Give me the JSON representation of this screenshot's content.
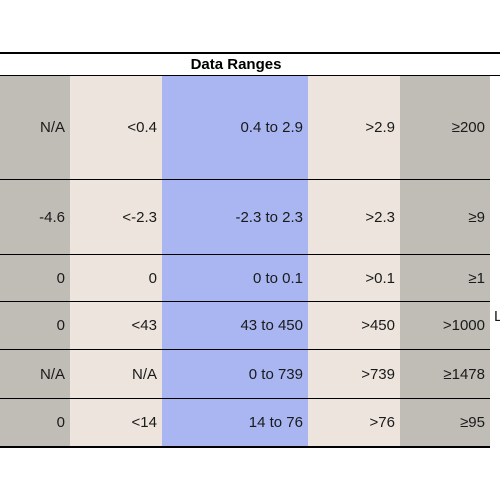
{
  "title": "Data Ranges",
  "rows": [
    {
      "c0": "N/A",
      "c1": "<0.4",
      "c2": "0.4 to 2.9",
      "c3": ">2.9",
      "c4": "≥200"
    },
    {
      "c0": "-4.6",
      "c1": "<-2.3",
      "c2": "-2.3 to 2.3",
      "c3": ">2.3",
      "c4": "≥9"
    },
    {
      "c0": "0",
      "c1": "0",
      "c2": "0 to 0.1",
      "c3": ">0.1",
      "c4": "≥1"
    },
    {
      "c0": "0",
      "c1": "<43",
      "c2": "43 to 450",
      "c3": ">450",
      "c4": ">1000",
      "side": "L"
    },
    {
      "c0": "N/A",
      "c1": "N/A",
      "c2": "0 to 739",
      "c3": ">739",
      "c4": "≥1478"
    },
    {
      "c0": "0",
      "c1": "<14",
      "c2": "14  to 76",
      "c3": ">76",
      "c4": "≥95"
    }
  ],
  "colors": {
    "gray_column": "#c0bdb6",
    "beige_column": "#ede5dd",
    "blue_column": "#a9b6f2"
  }
}
